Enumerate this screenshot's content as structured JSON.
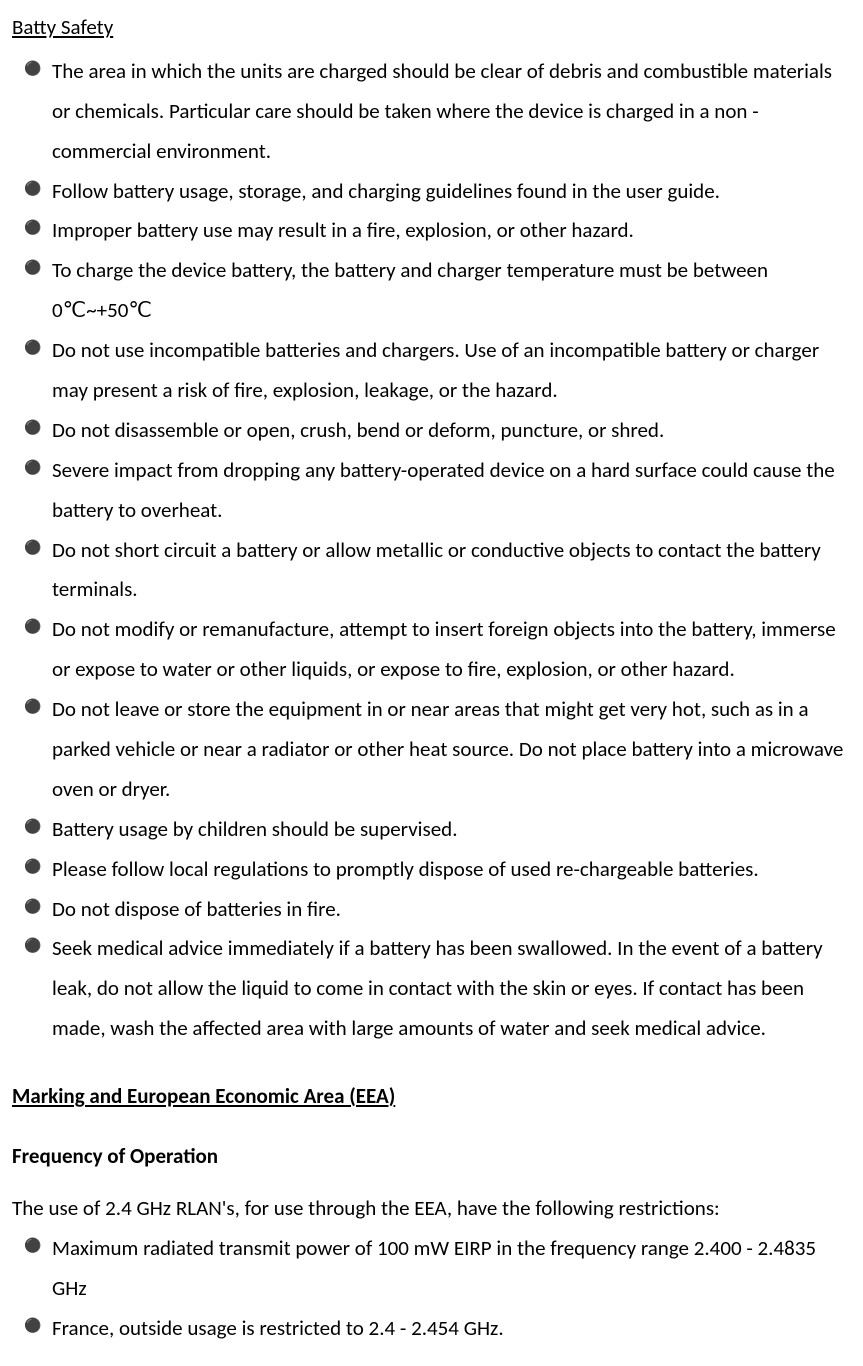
{
  "section1": {
    "title": "Batty Safety",
    "items": [
      "The area in which the units are charged should be clear of debris and combustible materials or chemicals.    Particular care should be taken where the device is charged in a non -commercial environment.",
      "Follow battery usage, storage, and charging guidelines found in the user guide.",
      "Improper battery use may result in a fire, explosion, or other hazard.",
      "To charge the device battery, the battery and charger temperature must be between 0℃~+50℃",
      "Do not use incompatible batteries and chargers.    Use of an incompatible battery or charger may present a risk of fire, explosion, leakage, or the hazard.",
      "Do not disassemble or open, crush, bend or deform, puncture, or shred.",
      "Severe impact from dropping any battery-operated device on a hard surface could cause the battery to overheat.",
      "Do not short circuit a battery or allow metallic or conductive objects to contact the battery terminals.",
      "Do not modify or remanufacture, attempt to insert foreign objects into the battery, immerse or expose to water or other liquids, or expose to fire, explosion, or other hazard.",
      "Do not leave or store the equipment in or near areas that might get very hot, such as in a parked vehicle or near a radiator or other heat source. Do not place battery into a microwave oven or dryer.",
      "Battery usage by children should be supervised.",
      "Please follow local regulations to promptly dispose of used re-chargeable batteries.",
      "Do not dispose of batteries in fire.",
      "Seek medical advice immediately if a battery has been swallowed. In the event of a battery leak, do not allow the liquid to come in contact with the skin or eyes. If contact has been made, wash the affected area with large amounts of water and seek medical advice."
    ]
  },
  "section2": {
    "title": "Marking and European Economic Area (EEA)  ",
    "subheading": "Frequency of Operation",
    "intro": "The use of 2.4 GHz RLAN's, for use through the EEA, have the following restrictions:",
    "items": [
      "Maximum radiated transmit power of 100 mW EIRP in the frequency range 2.400 - 2.4835 GHz",
      "France, outside usage is restricted to 2.4 - 2.454 GHz."
    ]
  },
  "bullet_char": "⚫"
}
